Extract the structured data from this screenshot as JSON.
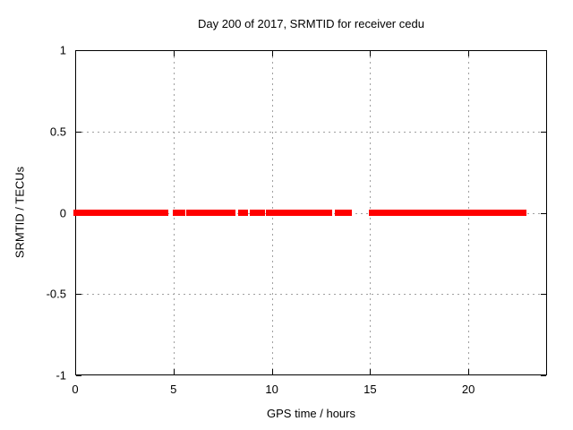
{
  "chart": {
    "title": "Day 200 of 2017, SRMTID for receiver cedu",
    "xlabel": "GPS time / hours",
    "ylabel": "SRMTID / TECUs"
  },
  "chart_data": {
    "type": "scatter",
    "title": "Day 200 of 2017, SRMTID for receiver cedu",
    "xlabel": "GPS time / hours",
    "ylabel": "SRMTID / TECUs",
    "xlim": [
      0,
      24
    ],
    "ylim": [
      -1,
      1
    ],
    "x_ticks": [
      0,
      5,
      10,
      15,
      20
    ],
    "y_ticks": [
      -1,
      -0.5,
      0,
      0.5,
      1
    ],
    "grid": true,
    "grid_style": "dotted",
    "legend_position": "none",
    "colors": {
      "series": "#ff0000",
      "grid": "#a0a0a0",
      "border": "#000000",
      "background": "#ffffff"
    },
    "series": [
      {
        "name": "SRMTID",
        "marker": "filled-square",
        "color": "#ff0000",
        "y_value": 0,
        "note": "all points lie at SRMTID ~ 0 TECUs; x coverage given as [start,end] hour intervals",
        "x_coverage_segments_hours": [
          [
            0.0,
            4.65
          ],
          [
            5.05,
            5.13
          ],
          [
            5.2,
            5.3
          ],
          [
            5.42,
            5.52
          ],
          [
            5.72,
            5.8
          ],
          [
            5.88,
            6.18
          ],
          [
            6.25,
            6.8
          ],
          [
            6.9,
            7.05
          ],
          [
            7.15,
            7.6
          ],
          [
            7.66,
            8.06
          ],
          [
            8.4,
            8.7
          ],
          [
            8.95,
            9.3
          ],
          [
            9.38,
            9.55
          ],
          [
            9.8,
            9.95
          ],
          [
            10.1,
            10.35
          ],
          [
            10.45,
            11.1
          ],
          [
            11.3,
            11.45
          ],
          [
            11.52,
            12.97
          ],
          [
            13.28,
            13.5
          ],
          [
            13.62,
            14.0
          ],
          [
            15.05,
            22.85
          ]
        ]
      }
    ]
  }
}
